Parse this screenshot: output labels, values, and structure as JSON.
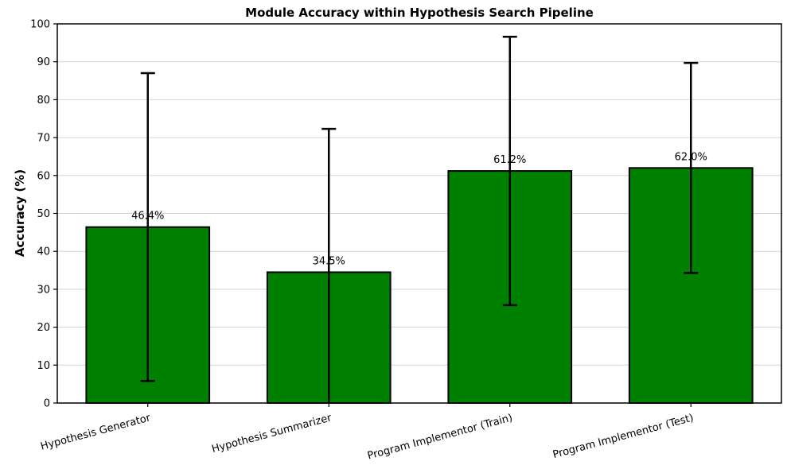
{
  "chart_data": {
    "type": "bar",
    "title": "Module Accuracy within Hypothesis Search Pipeline",
    "xlabel": "",
    "ylabel": "Accuracy (%)",
    "categories": [
      "Hypothesis Generator",
      "Hypothesis Summarizer",
      "Program Implementor (Train)",
      "Program Implementor (Test)"
    ],
    "values": [
      46.4,
      34.5,
      61.2,
      62.0
    ],
    "bar_labels": [
      "46.4%",
      "34.5%",
      "61.2%",
      "62.0%"
    ],
    "errors": [
      40.6,
      37.8,
      35.4,
      27.7
    ],
    "ylim": [
      0,
      100
    ],
    "ytick_step": 10,
    "grid": true,
    "legend": "none",
    "bar_color": "#008000",
    "bar_edge_color": "#000000",
    "error_color": "#000000",
    "grid_color": "#d3d3d3",
    "axis_color": "#000000",
    "tick_label_rotation_deg": 15
  }
}
